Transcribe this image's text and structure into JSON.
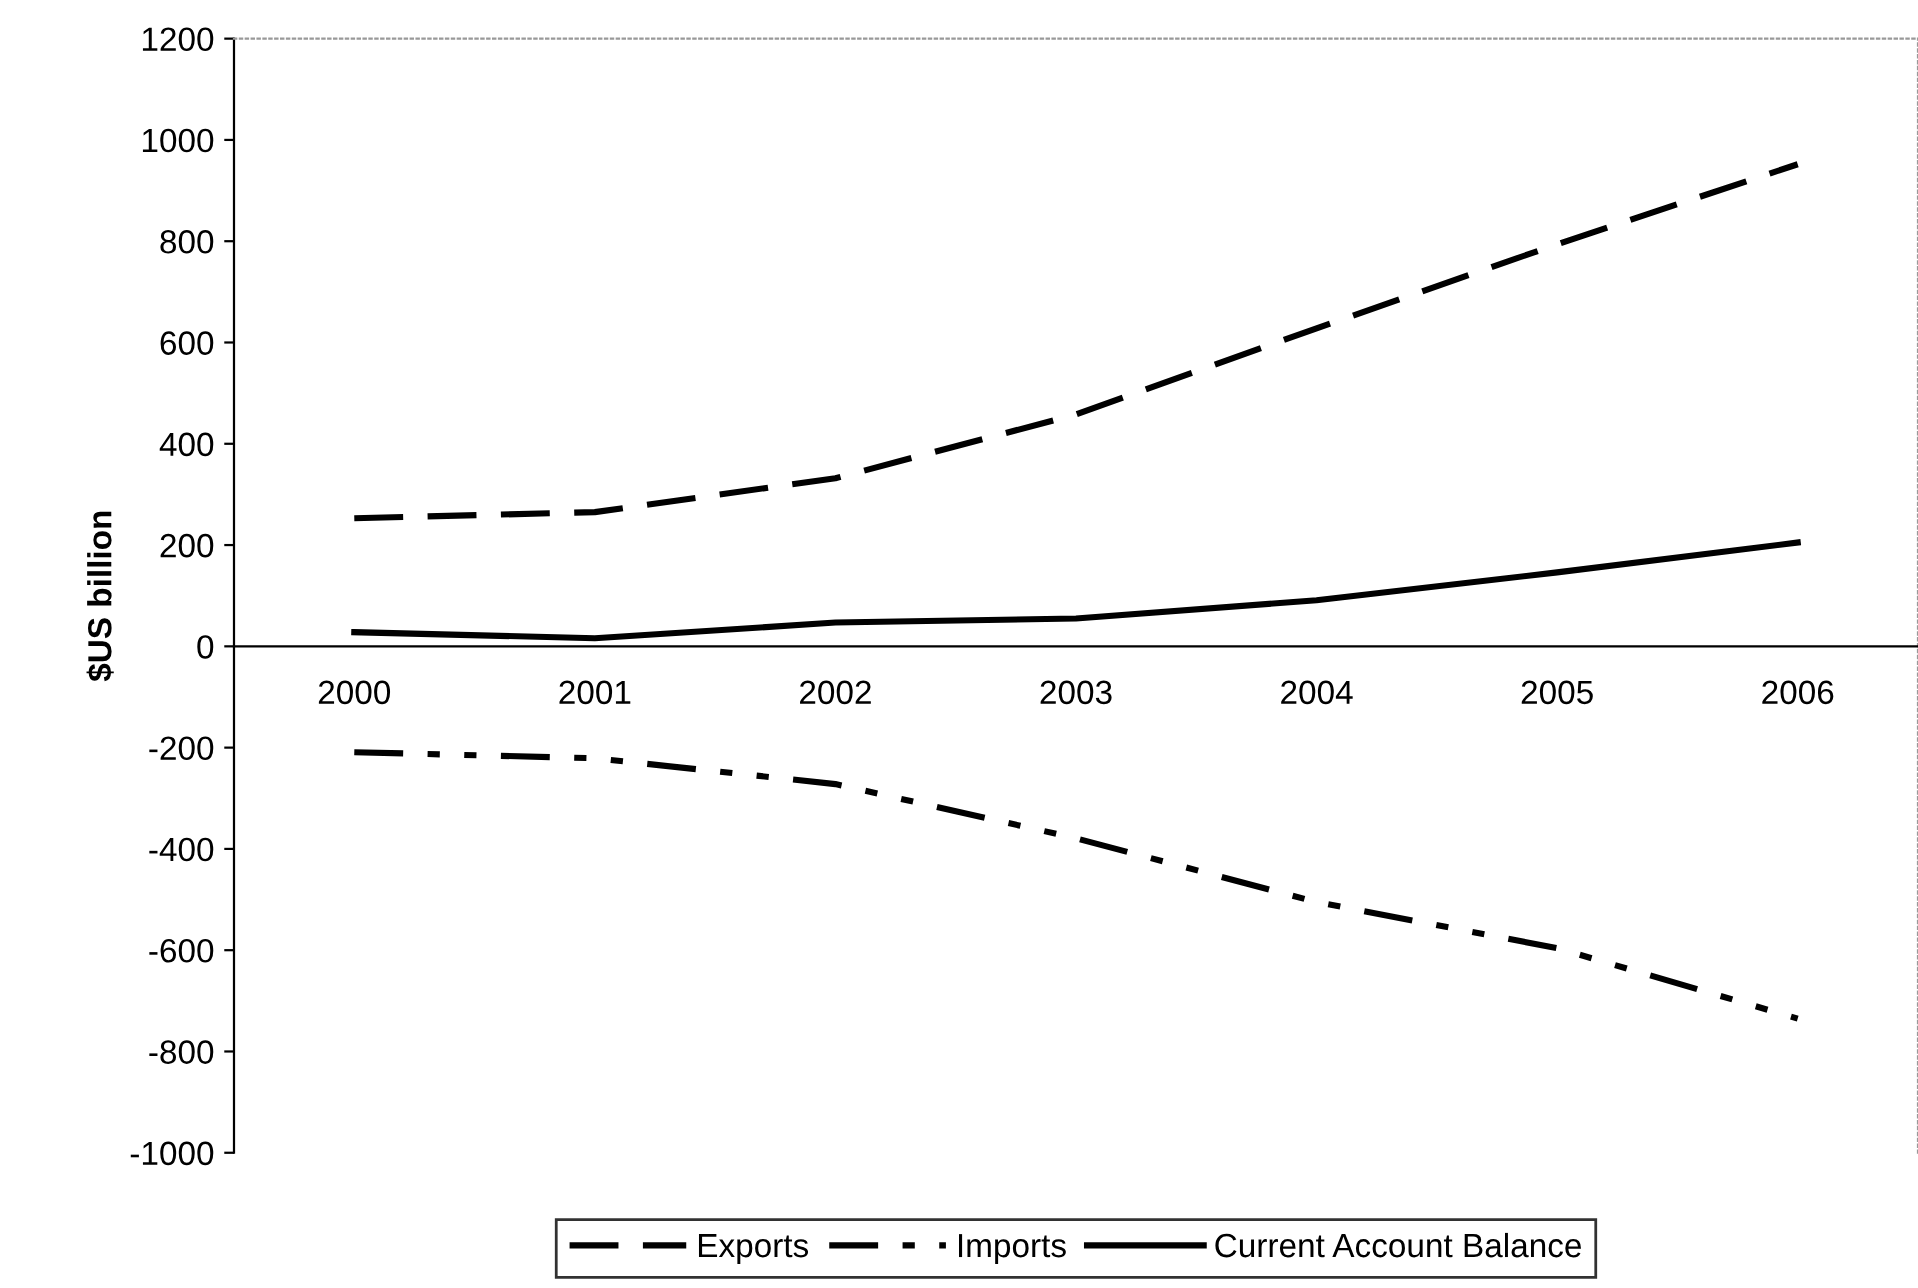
{
  "chart_data": {
    "type": "line",
    "ylabel": "$US billion",
    "categories": [
      "2000",
      "2001",
      "2002",
      "2003",
      "2004",
      "2005",
      "2006"
    ],
    "series": [
      {
        "name": "Exports",
        "color": "#000000",
        "line_style": "dashed",
        "values": [
          253,
          265,
          332,
          458,
          628,
          794,
          952
        ]
      },
      {
        "name": "Imports",
        "color": "#000000",
        "line_style": "dashdot",
        "values": [
          -209,
          -221,
          -272,
          -379,
          -505,
          -596,
          -735
        ]
      },
      {
        "name": "Current Account Balance",
        "color": "#000000",
        "line_style": "solid",
        "values": [
          28,
          16,
          47,
          55,
          91,
          146,
          205
        ]
      }
    ],
    "ylim": [
      -1000,
      1200
    ],
    "yticks": [
      -1000,
      -800,
      -600,
      -400,
      -200,
      0,
      200,
      400,
      600,
      800,
      1000,
      1200
    ],
    "grid": false,
    "legend": "bottom",
    "marker": "none"
  }
}
